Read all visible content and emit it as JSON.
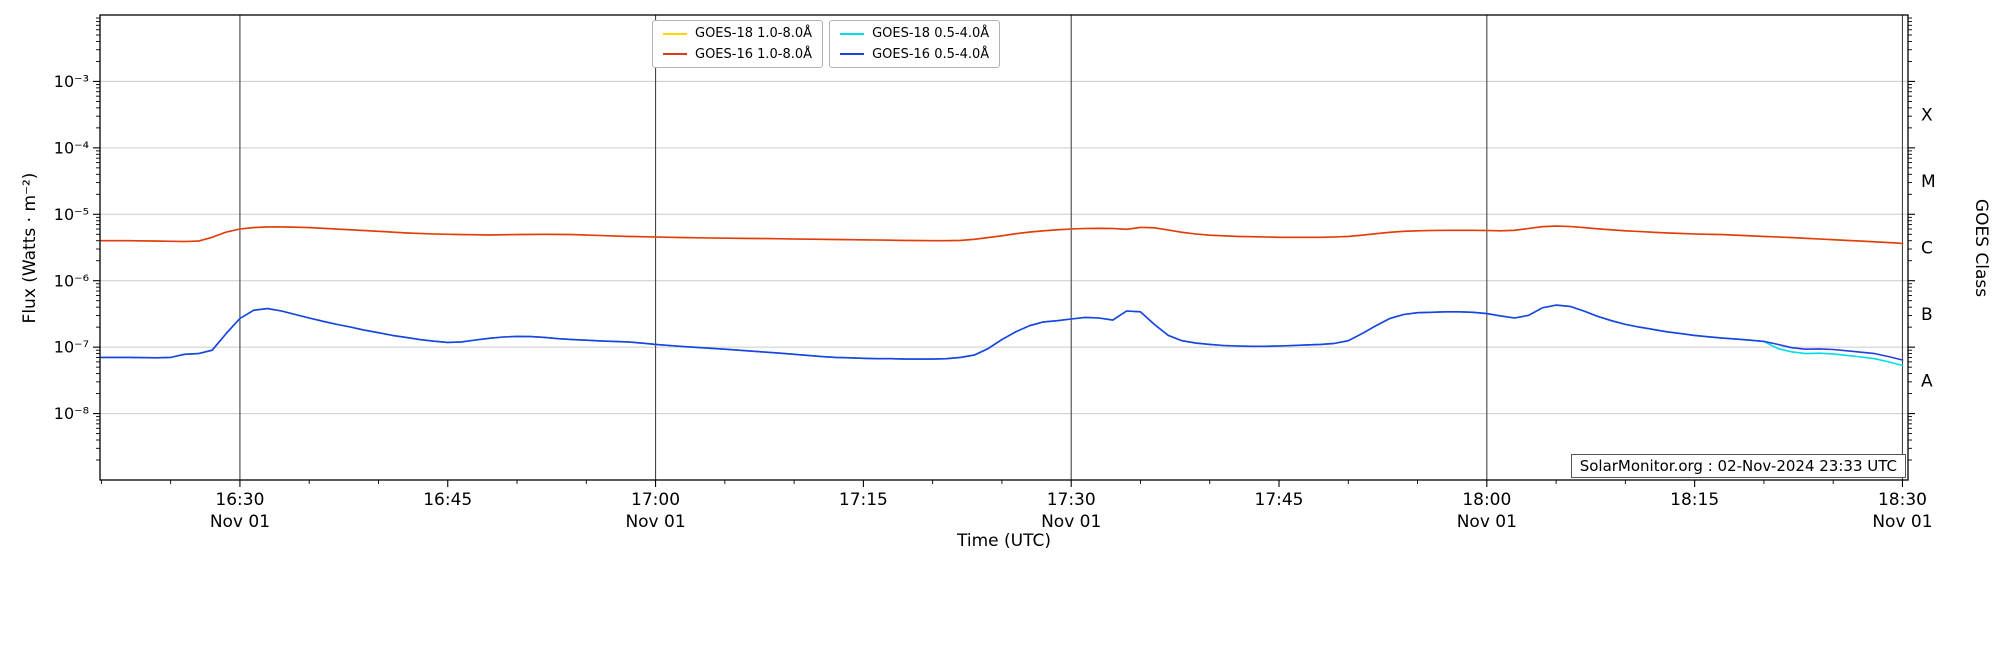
{
  "figure": {
    "xlabel": "Time (UTC)",
    "ylabel": "Flux (Watts · m⁻²)",
    "right_axis_label": "GOES Class",
    "watermark": "SolarMonitor.org : 02-Nov-2024 23:33 UTC",
    "background": "#ffffff"
  },
  "legend": {
    "entries": [
      {
        "label": "GOES-18 1.0-8.0Å",
        "color": "#ffd400"
      },
      {
        "label": "GOES-16 1.0-8.0Å",
        "color": "#e03b18"
      },
      {
        "label": "GOES-18 0.5-4.0Å",
        "color": "#00dce8"
      },
      {
        "label": "GOES-16 0.5-4.0Å",
        "color": "#2140e0"
      }
    ]
  },
  "chart_data": {
    "type": "line",
    "title": "",
    "time_base": "minutes after 16:00 UTC on Nov 01",
    "style": {
      "vertical_grid_color": "#444444",
      "horizontal_grid_color": "#cccccc",
      "spine_color": "#000000"
    },
    "x_axis": {
      "label": "Time (UTC)",
      "range_minutes": [
        19.9,
        150.4
      ],
      "minor_tick_step_minutes": 5,
      "gridline_minutes": [
        30,
        60,
        90,
        120,
        150
      ],
      "major_ticks": [
        {
          "minutes": 30,
          "label": "16:30",
          "date_label": "Nov 01"
        },
        {
          "minutes": 45,
          "label": "16:45",
          "date_label": ""
        },
        {
          "minutes": 60,
          "label": "17:00",
          "date_label": "Nov 01"
        },
        {
          "minutes": 75,
          "label": "17:15",
          "date_label": ""
        },
        {
          "minutes": 90,
          "label": "17:30",
          "date_label": "Nov 01"
        },
        {
          "minutes": 105,
          "label": "17:45",
          "date_label": ""
        },
        {
          "minutes": 120,
          "label": "18:00",
          "date_label": "Nov 01"
        },
        {
          "minutes": 135,
          "label": "18:15",
          "date_label": ""
        },
        {
          "minutes": 150,
          "label": "18:30",
          "date_label": "Nov 01"
        }
      ]
    },
    "y_axis": {
      "label": "Flux (Watts · m⁻²)",
      "scale_type": "log",
      "range": [
        1e-09,
        0.01
      ],
      "grid": true,
      "major_ticks": [
        {
          "value": 0.001,
          "label": "10⁻³"
        },
        {
          "value": 0.0001,
          "label": "10⁻⁴"
        },
        {
          "value": 1e-05,
          "label": "10⁻⁵"
        },
        {
          "value": 1e-06,
          "label": "10⁻⁶"
        },
        {
          "value": 1e-07,
          "label": "10⁻⁷"
        },
        {
          "value": 1e-08,
          "label": "10⁻⁸"
        }
      ]
    },
    "right_axis": {
      "label": "GOES Class",
      "class_labels": [
        {
          "label": "X",
          "value": 0.000316
        },
        {
          "label": "M",
          "value": 3.16e-05
        },
        {
          "label": "C",
          "value": 3.16e-06
        },
        {
          "label": "B",
          "value": 3.16e-07
        },
        {
          "label": "A",
          "value": 3.16e-08
        }
      ]
    },
    "series": [
      {
        "id": "goes18-long",
        "name": "GOES-18 1.0-8.0Å",
        "color": "#ffd400",
        "scale": 1e-06,
        "unit": "W m⁻²",
        "minutes": [
          20,
          22,
          24,
          26,
          27,
          28,
          29,
          30,
          31,
          32,
          33,
          34,
          35,
          36,
          38,
          40,
          42,
          44,
          46,
          48,
          50,
          52,
          54,
          56,
          58,
          60,
          62,
          64,
          66,
          68,
          70,
          72,
          74,
          76,
          78,
          80,
          81,
          82,
          83,
          84,
          85,
          86,
          87,
          88,
          89,
          90,
          91,
          92,
          93,
          94,
          95,
          96,
          97,
          98,
          99,
          100,
          101,
          102,
          103,
          104,
          105,
          106,
          107,
          108,
          109,
          110,
          111,
          112,
          113,
          114,
          115,
          116,
          117,
          118,
          119,
          120,
          121,
          122,
          123,
          124,
          125,
          126,
          127,
          128,
          129,
          130,
          131,
          132,
          133,
          134,
          135,
          136,
          137,
          138,
          139,
          140,
          141,
          142,
          143,
          144,
          145,
          146,
          147,
          148,
          149,
          150
        ],
        "flux": [
          4.0,
          4.0,
          3.95,
          3.9,
          3.95,
          4.5,
          5.4,
          6.0,
          6.3,
          6.45,
          6.45,
          6.4,
          6.3,
          6.15,
          5.85,
          5.55,
          5.25,
          5.05,
          4.95,
          4.9,
          4.95,
          5.0,
          4.95,
          4.8,
          4.65,
          4.55,
          4.45,
          4.4,
          4.35,
          4.3,
          4.25,
          4.2,
          4.15,
          4.1,
          4.05,
          4.0,
          4.0,
          4.05,
          4.2,
          4.45,
          4.75,
          5.1,
          5.4,
          5.65,
          5.85,
          6.0,
          6.1,
          6.15,
          6.1,
          5.95,
          6.35,
          6.25,
          5.8,
          5.35,
          5.05,
          4.85,
          4.75,
          4.65,
          4.6,
          4.55,
          4.5,
          4.5,
          4.5,
          4.5,
          4.55,
          4.65,
          4.85,
          5.1,
          5.35,
          5.55,
          5.65,
          5.7,
          5.75,
          5.75,
          5.75,
          5.7,
          5.65,
          5.75,
          6.1,
          6.5,
          6.65,
          6.55,
          6.3,
          6.05,
          5.85,
          5.65,
          5.5,
          5.35,
          5.25,
          5.15,
          5.05,
          5.0,
          4.95,
          4.85,
          4.75,
          4.65,
          4.55,
          4.45,
          4.35,
          4.25,
          4.15,
          4.05,
          3.95,
          3.85,
          3.75,
          3.65
        ]
      },
      {
        "id": "goes18-short",
        "name": "GOES-18 0.5-4.0Å",
        "color": "#00dce8",
        "scale": 1e-08,
        "unit": "W m⁻²",
        "minutes": [
          20,
          22,
          24,
          25,
          26,
          27,
          28,
          29,
          30,
          31,
          32,
          33,
          34,
          35,
          36,
          37,
          38,
          39,
          40,
          41,
          42,
          43,
          44,
          45,
          46,
          47,
          48,
          49,
          50,
          51,
          52,
          53,
          54,
          55,
          56,
          57,
          58,
          59,
          60,
          61,
          62,
          63,
          64,
          65,
          66,
          67,
          68,
          69,
          70,
          71,
          72,
          73,
          74,
          75,
          76,
          77,
          78,
          79,
          80,
          81,
          82,
          83,
          84,
          85,
          86,
          87,
          88,
          89,
          90,
          91,
          92,
          93,
          94,
          95,
          96,
          97,
          98,
          99,
          100,
          101,
          102,
          103,
          104,
          105,
          106,
          107,
          108,
          109,
          110,
          111,
          112,
          113,
          114,
          115,
          116,
          117,
          118,
          119,
          120,
          121,
          122,
          123,
          124,
          125,
          126,
          127,
          128,
          129,
          130,
          131,
          132,
          133,
          134,
          135,
          136,
          137,
          138,
          139,
          140,
          141,
          142,
          143,
          144,
          145,
          146,
          147,
          148,
          149,
          150
        ],
        "flux": [
          7.0,
          7.0,
          6.9,
          7.0,
          7.8,
          8.0,
          9.0,
          16,
          27,
          36,
          38,
          35,
          31,
          27.5,
          24.5,
          22,
          20,
          18,
          16.5,
          15,
          14,
          13,
          12.3,
          11.8,
          12,
          12.8,
          13.6,
          14.2,
          14.5,
          14.4,
          14,
          13.4,
          13,
          12.7,
          12.4,
          12.2,
          12,
          11.5,
          11,
          10.6,
          10.2,
          9.9,
          9.6,
          9.3,
          9.0,
          8.7,
          8.4,
          8.1,
          7.8,
          7.5,
          7.2,
          7.0,
          6.9,
          6.8,
          6.7,
          6.7,
          6.6,
          6.6,
          6.6,
          6.7,
          7.0,
          7.6,
          9.5,
          13,
          17,
          21,
          24,
          25,
          26.5,
          28,
          27.5,
          25.5,
          35,
          34,
          22,
          15,
          12.5,
          11.5,
          11,
          10.6,
          10.4,
          10.3,
          10.3,
          10.4,
          10.6,
          10.8,
          11,
          11.4,
          12.5,
          16,
          21,
          27,
          31,
          33,
          33.5,
          34,
          34,
          33.5,
          32,
          29.5,
          27.5,
          30,
          39,
          43,
          41,
          35,
          29,
          25,
          22,
          20,
          18.5,
          17,
          16,
          15,
          14.3,
          13.7,
          13.2,
          12.7,
          12.2,
          9.5,
          8.5,
          8.0,
          8.1,
          7.9,
          7.5,
          7.1,
          6.7,
          6.0,
          5.3
        ]
      },
      {
        "id": "goes16-long",
        "name": "GOES-16 1.0-8.0Å",
        "color": "#e03b18",
        "scale": 1e-06,
        "unit": "W m⁻²",
        "minutes": [
          20,
          22,
          24,
          26,
          27,
          28,
          29,
          30,
          31,
          32,
          33,
          34,
          35,
          36,
          38,
          40,
          42,
          44,
          46,
          48,
          50,
          52,
          54,
          56,
          58,
          60,
          62,
          64,
          66,
          68,
          70,
          72,
          74,
          76,
          78,
          80,
          81,
          82,
          83,
          84,
          85,
          86,
          87,
          88,
          89,
          90,
          91,
          92,
          93,
          94,
          95,
          96,
          97,
          98,
          99,
          100,
          101,
          102,
          103,
          104,
          105,
          106,
          107,
          108,
          109,
          110,
          111,
          112,
          113,
          114,
          115,
          116,
          117,
          118,
          119,
          120,
          121,
          122,
          123,
          124,
          125,
          126,
          127,
          128,
          129,
          130,
          131,
          132,
          133,
          134,
          135,
          136,
          137,
          138,
          139,
          140,
          141,
          142,
          143,
          144,
          145,
          146,
          147,
          148,
          149,
          150
        ],
        "flux": [
          4.0,
          4.0,
          3.95,
          3.9,
          3.95,
          4.5,
          5.4,
          6.0,
          6.3,
          6.45,
          6.45,
          6.4,
          6.3,
          6.15,
          5.85,
          5.55,
          5.25,
          5.05,
          4.95,
          4.9,
          4.95,
          5.0,
          4.95,
          4.8,
          4.65,
          4.55,
          4.45,
          4.4,
          4.35,
          4.3,
          4.25,
          4.2,
          4.15,
          4.1,
          4.05,
          4.0,
          4.0,
          4.05,
          4.2,
          4.45,
          4.75,
          5.1,
          5.4,
          5.65,
          5.85,
          6.0,
          6.1,
          6.15,
          6.1,
          5.95,
          6.35,
          6.25,
          5.8,
          5.35,
          5.05,
          4.85,
          4.75,
          4.65,
          4.6,
          4.55,
          4.5,
          4.5,
          4.5,
          4.5,
          4.55,
          4.65,
          4.85,
          5.1,
          5.35,
          5.55,
          5.65,
          5.7,
          5.75,
          5.75,
          5.75,
          5.7,
          5.65,
          5.75,
          6.1,
          6.5,
          6.65,
          6.55,
          6.3,
          6.05,
          5.85,
          5.65,
          5.5,
          5.35,
          5.25,
          5.15,
          5.05,
          5.0,
          4.95,
          4.85,
          4.75,
          4.65,
          4.55,
          4.45,
          4.35,
          4.25,
          4.15,
          4.05,
          3.95,
          3.85,
          3.75,
          3.65
        ]
      },
      {
        "id": "goes16-short",
        "name": "GOES-16 0.5-4.0Å",
        "color": "#2140e0",
        "scale": 1e-08,
        "unit": "W m⁻²",
        "minutes": [
          20,
          22,
          24,
          25,
          26,
          27,
          28,
          29,
          30,
          31,
          32,
          33,
          34,
          35,
          36,
          37,
          38,
          39,
          40,
          41,
          42,
          43,
          44,
          45,
          46,
          47,
          48,
          49,
          50,
          51,
          52,
          53,
          54,
          55,
          56,
          57,
          58,
          59,
          60,
          61,
          62,
          63,
          64,
          65,
          66,
          67,
          68,
          69,
          70,
          71,
          72,
          73,
          74,
          75,
          76,
          77,
          78,
          79,
          80,
          81,
          82,
          83,
          84,
          85,
          86,
          87,
          88,
          89,
          90,
          91,
          92,
          93,
          94,
          95,
          96,
          97,
          98,
          99,
          100,
          101,
          102,
          103,
          104,
          105,
          106,
          107,
          108,
          109,
          110,
          111,
          112,
          113,
          114,
          115,
          116,
          117,
          118,
          119,
          120,
          121,
          122,
          123,
          124,
          125,
          126,
          127,
          128,
          129,
          130,
          131,
          132,
          133,
          134,
          135,
          136,
          137,
          138,
          139,
          140,
          141,
          142,
          143,
          144,
          145,
          146,
          147,
          148,
          149,
          150
        ],
        "flux": [
          7.0,
          7.0,
          6.9,
          7.0,
          7.8,
          8.0,
          9.0,
          16,
          27,
          36,
          38,
          35,
          31,
          27.5,
          24.5,
          22,
          20,
          18,
          16.5,
          15,
          14,
          13,
          12.3,
          11.8,
          12,
          12.8,
          13.6,
          14.2,
          14.5,
          14.4,
          14,
          13.4,
          13,
          12.7,
          12.4,
          12.2,
          12,
          11.5,
          11,
          10.6,
          10.2,
          9.9,
          9.6,
          9.3,
          9.0,
          8.7,
          8.4,
          8.1,
          7.8,
          7.5,
          7.2,
          7.0,
          6.9,
          6.8,
          6.7,
          6.7,
          6.6,
          6.6,
          6.6,
          6.7,
          7.0,
          7.6,
          9.5,
          13,
          17,
          21,
          24,
          25,
          26.5,
          28,
          27.5,
          25.5,
          35,
          34,
          22,
          15,
          12.5,
          11.5,
          11,
          10.6,
          10.4,
          10.3,
          10.3,
          10.4,
          10.6,
          10.8,
          11,
          11.4,
          12.5,
          16,
          21,
          27,
          31,
          33,
          33.5,
          34,
          34,
          33.5,
          32,
          29.5,
          27.5,
          30,
          39,
          43,
          41,
          35,
          29,
          25,
          22,
          20,
          18.5,
          17,
          16,
          15,
          14.3,
          13.7,
          13.2,
          12.7,
          12.2,
          11,
          9.8,
          9.3,
          9.4,
          9.2,
          8.8,
          8.4,
          8.0,
          7.2,
          6.4
        ]
      }
    ]
  }
}
